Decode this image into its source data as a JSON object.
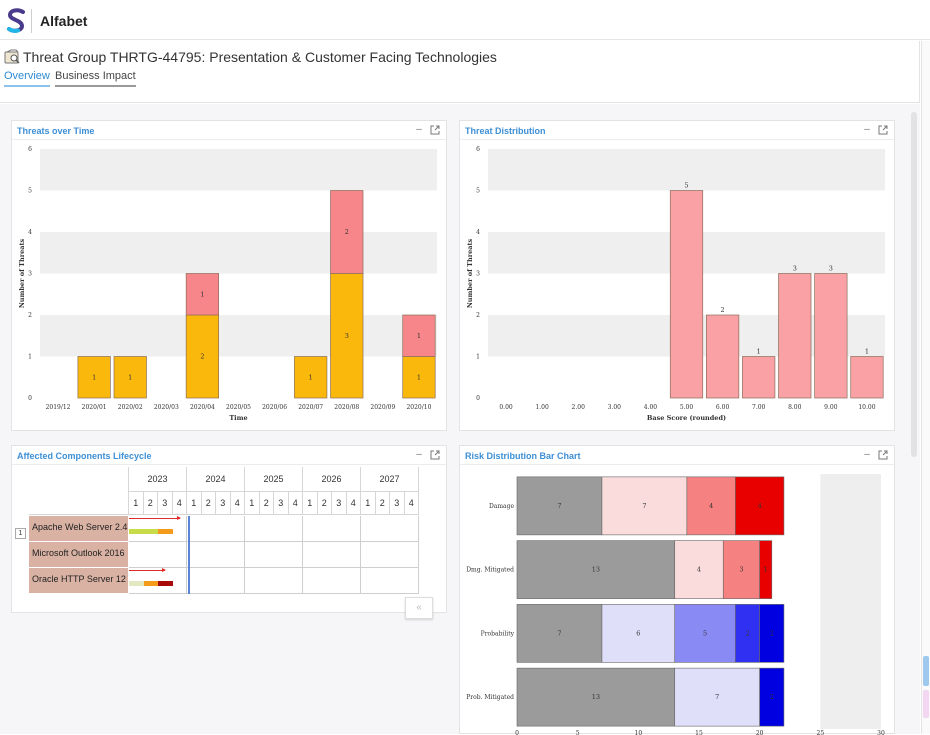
{
  "app": {
    "name": "Alfabet",
    "logo_icon": "alfabet-s-logo-icon"
  },
  "page": {
    "title": "Threat Group THRTG-44795: Presentation & Customer Facing Technologies",
    "icon": "threat-group-icon",
    "tabs": [
      {
        "label": "Overview",
        "active": true
      },
      {
        "label": "Business Impact",
        "active": false
      }
    ]
  },
  "panels": {
    "threats_over_time": {
      "title": "Threats over Time",
      "minimize_label": "–"
    },
    "threat_distribution": {
      "title": "Threat Distribution",
      "minimize_label": "–"
    },
    "affected_components": {
      "title": "Affected Components Lifecycle",
      "minimize_label": "–"
    },
    "risk_distribution": {
      "title": "Risk Distribution Bar Chart",
      "minimize_label": "–"
    }
  },
  "chart_data": [
    {
      "id": "threats_over_time",
      "type": "bar",
      "stacked": true,
      "xlabel": "Time",
      "ylabel": "Number of Threats",
      "ylim": [
        0,
        6
      ],
      "yticks": [
        0,
        1,
        2,
        3,
        4,
        5,
        6
      ],
      "categories": [
        "2019/12",
        "2020/01",
        "2020/02",
        "2020/03",
        "2020/04",
        "2020/05",
        "2020/06",
        "2020/07",
        "2020/08",
        "2020/09",
        "2020/10"
      ],
      "series": [
        {
          "color": "#fbb80c",
          "values": [
            0,
            1,
            1,
            0,
            2,
            0,
            0,
            1,
            3,
            0,
            1
          ]
        },
        {
          "color": "#f7868a",
          "values": [
            0,
            0,
            0,
            0,
            1,
            0,
            0,
            0,
            2,
            0,
            1
          ]
        }
      ],
      "grid_bands": true
    },
    {
      "id": "threat_distribution",
      "type": "bar",
      "xlabel": "Base Score (rounded)",
      "ylabel": "Number of Threats",
      "ylim": [
        0,
        6
      ],
      "yticks": [
        0,
        1,
        2,
        3,
        4,
        5,
        6
      ],
      "categories": [
        "0.00",
        "1.00",
        "2.00",
        "3.00",
        "4.00",
        "5.00",
        "6.00",
        "7.00",
        "8.00",
        "9.00",
        "10.00"
      ],
      "values": [
        0,
        0,
        0,
        0,
        0,
        5,
        2,
        1,
        3,
        3,
        1
      ],
      "color": "#f9a1a4",
      "grid_bands": true
    },
    {
      "id": "risk_distribution",
      "type": "bar",
      "orientation": "horizontal",
      "stacked": true,
      "xlim": [
        0,
        30
      ],
      "xticks": [
        0,
        5,
        10,
        15,
        20,
        25,
        30
      ],
      "categories": [
        "Damage",
        "Dmg. Mitigated",
        "Probability",
        "Prob. Mitigated"
      ],
      "rows": [
        {
          "segments": [
            {
              "value": 7,
              "color": "#9b9b9b"
            },
            {
              "value": 7,
              "color": "#fadcdc"
            },
            {
              "value": 4,
              "color": "#f58181"
            },
            {
              "value": 4,
              "color": "#e80000"
            }
          ]
        },
        {
          "segments": [
            {
              "value": 13,
              "color": "#9b9b9b"
            },
            {
              "value": 4,
              "color": "#fadcdc"
            },
            {
              "value": 3,
              "color": "#f58181"
            },
            {
              "value": 1,
              "color": "#e80000"
            }
          ]
        },
        {
          "segments": [
            {
              "value": 7,
              "color": "#9b9b9b"
            },
            {
              "value": 6,
              "color": "#dfdff9"
            },
            {
              "value": 5,
              "color": "#8a8af5"
            },
            {
              "value": 2,
              "color": "#3030f2"
            },
            {
              "value": 2,
              "color": "#0000e0"
            }
          ]
        },
        {
          "segments": [
            {
              "value": 13,
              "color": "#9b9b9b"
            },
            {
              "value": 7,
              "color": "#dfdff9"
            },
            {
              "value": 2,
              "color": "#0000e0"
            }
          ]
        }
      ]
    }
  ],
  "lifecycle": {
    "toggle_label": "1",
    "collapse_label": "«",
    "years": [
      "2023",
      "2024",
      "2025",
      "2026",
      "2027"
    ],
    "quarters": [
      "1",
      "2",
      "3",
      "4"
    ],
    "components": [
      {
        "name": "Apache Web Server 2.4",
        "bars": [
          {
            "from_q": 0,
            "to_q": 2,
            "color": "#c8dc4a"
          },
          {
            "from_q": 2,
            "to_q": 3,
            "color": "#f59b1c"
          }
        ],
        "arrow": {
          "from_q": 0,
          "to_q": 3.5,
          "color": "#e12b2b"
        }
      },
      {
        "name": "Microsoft Outlook 2016",
        "bars": []
      },
      {
        "name": "Oracle HTTP Server 12",
        "bars": [
          {
            "from_q": 0,
            "to_q": 1,
            "color": "#e3e8c2"
          },
          {
            "from_q": 1,
            "to_q": 2,
            "color": "#f59b1c"
          },
          {
            "from_q": 2,
            "to_q": 3,
            "color": "#a80a0a"
          }
        ],
        "arrow": {
          "from_q": 0,
          "to_q": 2.5,
          "color": "#e12b2b"
        }
      }
    ],
    "today_marker_q": 4.1,
    "today_color": "#5a84d6"
  }
}
